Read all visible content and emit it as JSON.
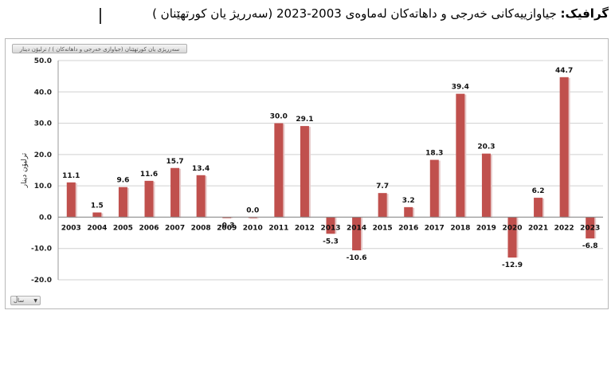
{
  "header": {
    "label": "گرافیک:",
    "title": "جیاوازییەكانی خەرجی و داهاتەكان لەماوەی 2003-2023 (سەرریژ یان كورتهێنان )"
  },
  "chart_controls": {
    "series_chip": "سەرریژی یان كورتهێنان (جیاوازی خەرجی و داهاتەكان ) / ترلیۆن دینار",
    "x_field_dropdown": "ساڵ",
    "dropdown_icon": "chevron-down-icon"
  },
  "chart_data": {
    "type": "bar",
    "categories": [
      "2003",
      "2004",
      "2005",
      "2006",
      "2007",
      "2008",
      "2009",
      "2010",
      "2011",
      "2012",
      "2013",
      "2014",
      "2015",
      "2016",
      "2017",
      "2018",
      "2019",
      "2020",
      "2021",
      "2022",
      "2023"
    ],
    "values": [
      11.1,
      1.5,
      9.6,
      11.6,
      15.7,
      13.4,
      -0.3,
      0.0,
      30.0,
      29.1,
      -5.3,
      -10.6,
      7.7,
      3.2,
      18.3,
      39.4,
      20.3,
      -12.9,
      6.2,
      44.7,
      -6.8
    ],
    "data_labels": [
      "11.1",
      "1.5",
      "9.6",
      "11.6",
      "15.7",
      "13.4",
      "-0.3",
      "0.0",
      "30.0",
      "29.1",
      "-5.3",
      "-10.6",
      "7.7",
      "3.2",
      "18.3",
      "39.4",
      "20.3",
      "-12.9",
      "6.2",
      "44.7",
      "-6.8"
    ],
    "ylabel": "ترلیۆن دینار",
    "xlabel": "",
    "ylim": [
      -20,
      50
    ],
    "yticks": [
      "50.0",
      "40.0",
      "30.0",
      "20.0",
      "10.0",
      "0.0",
      "-10.0",
      "-20.0"
    ],
    "ytick_values": [
      50,
      40,
      30,
      20,
      10,
      0,
      -10,
      -20
    ],
    "bar_color": "#c0504d",
    "grid": true
  }
}
